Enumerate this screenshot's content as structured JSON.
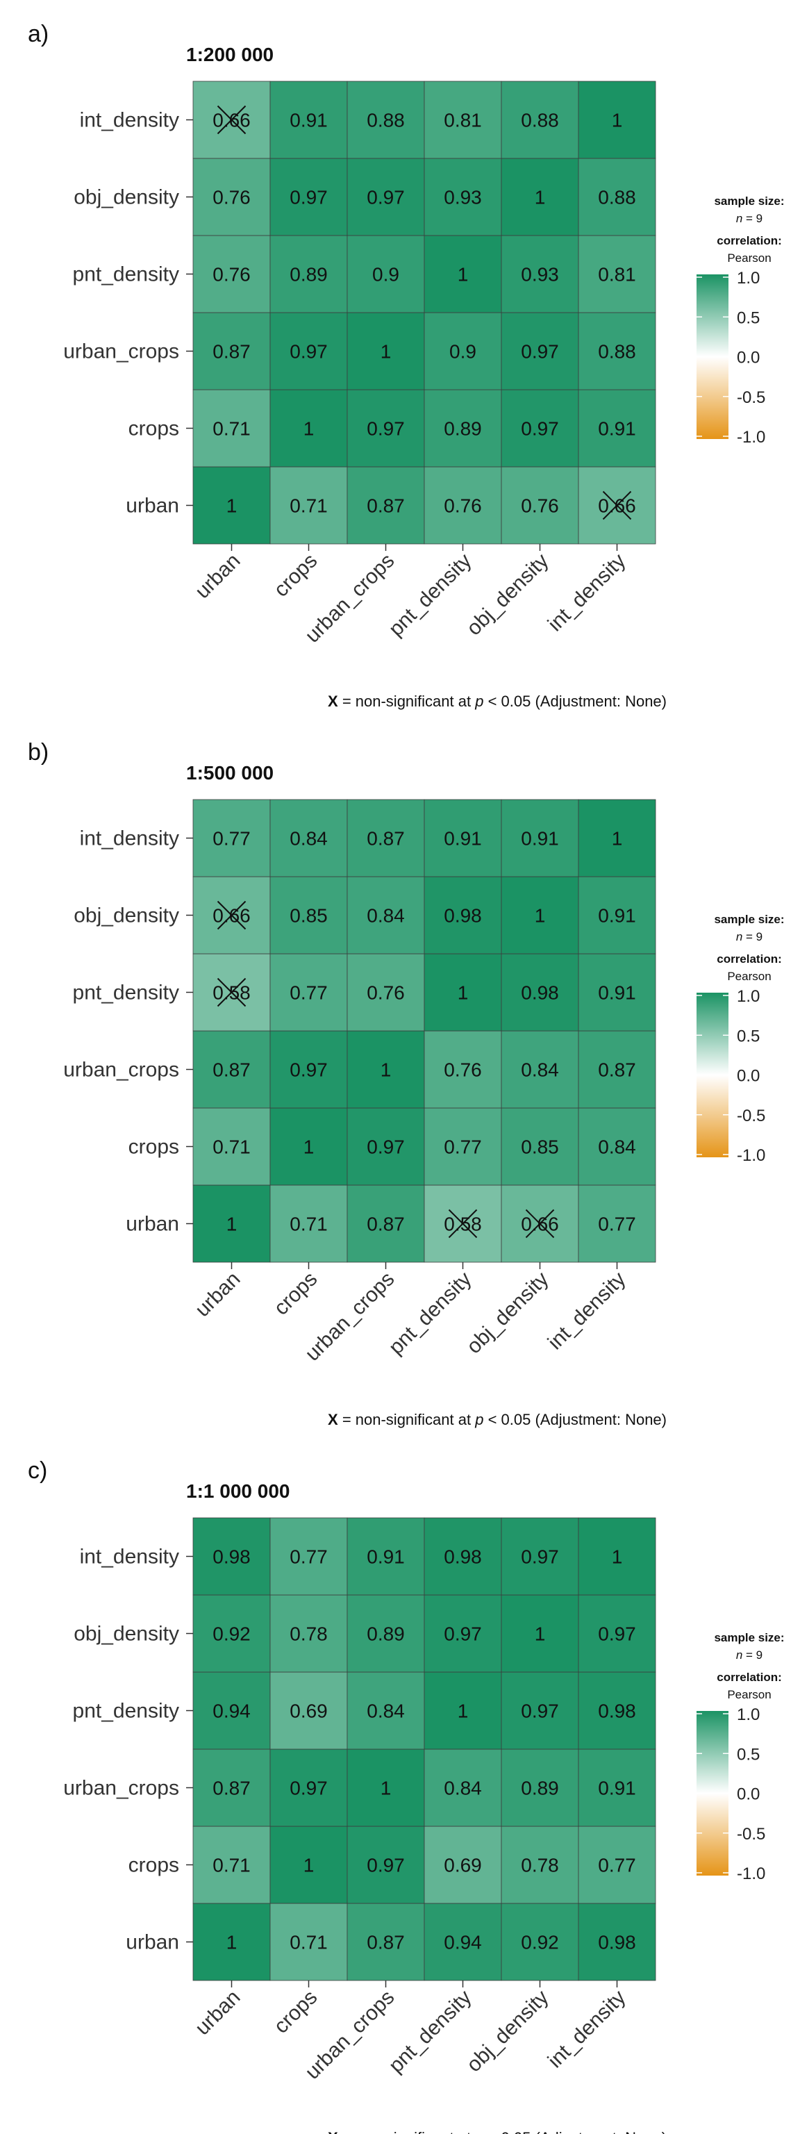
{
  "figure": {
    "variables": [
      "urban",
      "crops",
      "urban_crops",
      "pnt_density",
      "obj_density",
      "int_density"
    ],
    "legend": {
      "sample_size_title": "sample size:",
      "sample_size_value": "n = 9",
      "correlation_title": "correlation:",
      "correlation_method": "Pearson",
      "ticks": [
        "1.0",
        "0.5",
        "0.0",
        "-0.5",
        "-1.0"
      ],
      "colors": {
        "high": "#1b9364",
        "mid": "#ffffff",
        "low": "#e59417"
      }
    },
    "footnote": {
      "symbol": "X",
      "pre": " = non-significant at ",
      "italic": "p",
      "post": " < 0.05 (Adjustment: None)"
    }
  },
  "chart_data": [
    {
      "type": "heatmap",
      "panel": "a)",
      "title": "1:200 000",
      "x": [
        "urban",
        "crops",
        "urban_crops",
        "pnt_density",
        "obj_density",
        "int_density"
      ],
      "y": [
        "urban",
        "crops",
        "urban_crops",
        "pnt_density",
        "obj_density",
        "int_density"
      ],
      "values": [
        [
          1,
          0.71,
          0.87,
          0.76,
          0.76,
          0.66
        ],
        [
          0.71,
          1,
          0.97,
          0.89,
          0.97,
          0.91
        ],
        [
          0.87,
          0.97,
          1,
          0.9,
          0.97,
          0.88
        ],
        [
          0.76,
          0.89,
          0.9,
          1,
          0.93,
          0.81
        ],
        [
          0.76,
          0.97,
          0.97,
          0.93,
          1,
          0.88
        ],
        [
          0.66,
          0.91,
          0.88,
          0.81,
          0.88,
          1
        ]
      ],
      "nonsignificant": [
        [
          0,
          5
        ],
        [
          5,
          0
        ]
      ],
      "color_range": [
        -1,
        1
      ]
    },
    {
      "type": "heatmap",
      "panel": "b)",
      "title": "1:500 000",
      "x": [
        "urban",
        "crops",
        "urban_crops",
        "pnt_density",
        "obj_density",
        "int_density"
      ],
      "y": [
        "urban",
        "crops",
        "urban_crops",
        "pnt_density",
        "obj_density",
        "int_density"
      ],
      "values": [
        [
          1,
          0.71,
          0.87,
          0.58,
          0.66,
          0.77
        ],
        [
          0.71,
          1,
          0.97,
          0.77,
          0.85,
          0.84
        ],
        [
          0.87,
          0.97,
          1,
          0.76,
          0.84,
          0.87
        ],
        [
          0.58,
          0.77,
          0.76,
          1,
          0.98,
          0.91
        ],
        [
          0.66,
          0.85,
          0.84,
          0.98,
          1,
          0.91
        ],
        [
          0.77,
          0.84,
          0.87,
          0.91,
          0.91,
          1
        ]
      ],
      "nonsignificant": [
        [
          0,
          3
        ],
        [
          0,
          4
        ],
        [
          3,
          0
        ],
        [
          4,
          0
        ]
      ],
      "color_range": [
        -1,
        1
      ]
    },
    {
      "type": "heatmap",
      "panel": "c)",
      "title": "1:1 000 000",
      "x": [
        "urban",
        "crops",
        "urban_crops",
        "pnt_density",
        "obj_density",
        "int_density"
      ],
      "y": [
        "urban",
        "crops",
        "urban_crops",
        "pnt_density",
        "obj_density",
        "int_density"
      ],
      "values": [
        [
          1,
          0.71,
          0.87,
          0.94,
          0.92,
          0.98
        ],
        [
          0.71,
          1,
          0.97,
          0.69,
          0.78,
          0.77
        ],
        [
          0.87,
          0.97,
          1,
          0.84,
          0.89,
          0.91
        ],
        [
          0.94,
          0.69,
          0.84,
          1,
          0.97,
          0.98
        ],
        [
          0.92,
          0.78,
          0.89,
          0.97,
          1,
          0.97
        ],
        [
          0.98,
          0.77,
          0.91,
          0.98,
          0.97,
          1
        ]
      ],
      "nonsignificant": [],
      "color_range": [
        -1,
        1
      ]
    }
  ]
}
